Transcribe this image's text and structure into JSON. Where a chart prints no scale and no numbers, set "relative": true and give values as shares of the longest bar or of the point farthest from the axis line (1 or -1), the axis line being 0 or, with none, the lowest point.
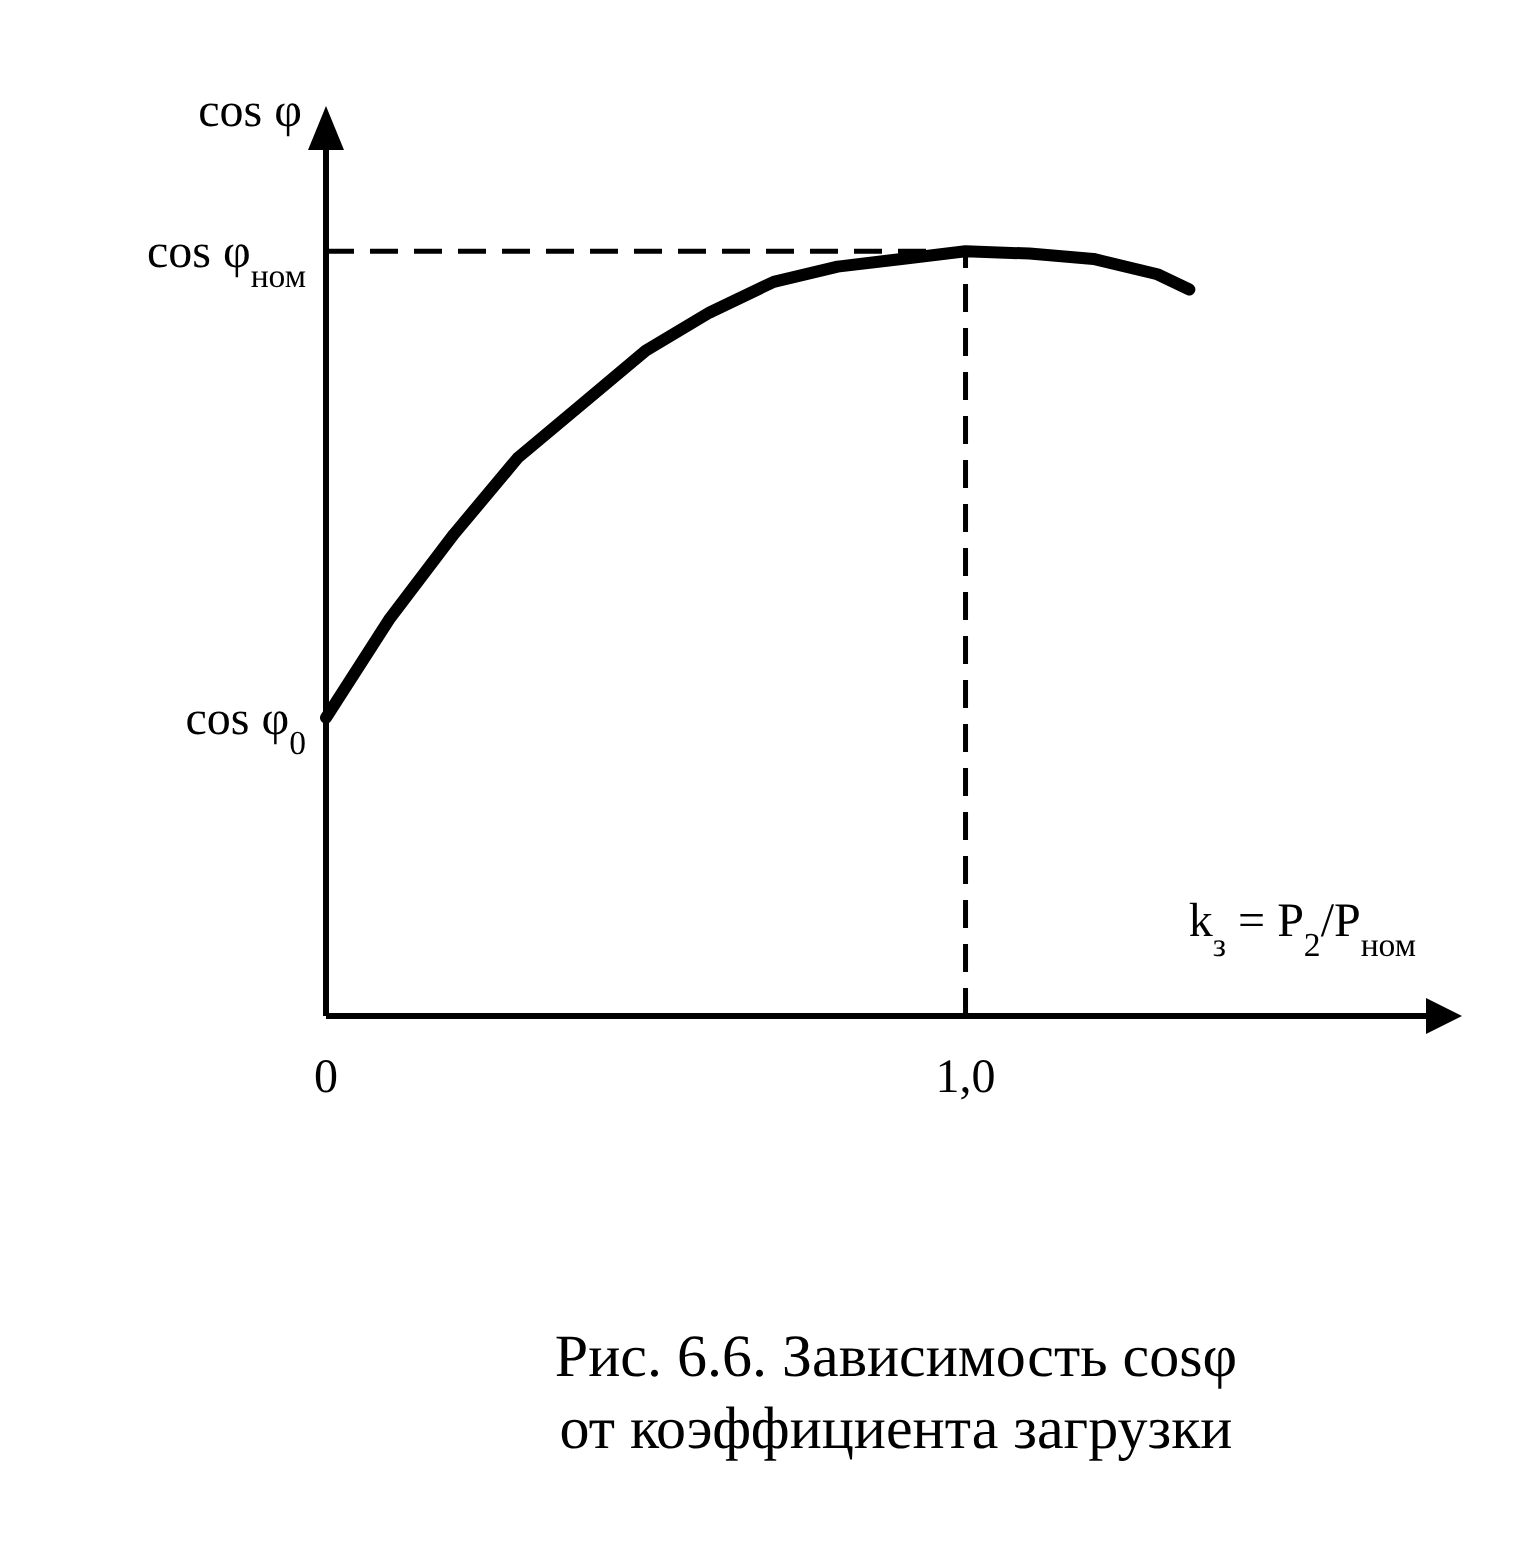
{
  "chart_data": {
    "type": "line",
    "title": "Рис. 6.6. Зависимость cosφ от коэффициента загрузки",
    "xlabel": "k$_{з}$ = P$_{2}$/P$_{ном}$",
    "ylabel": "cos φ",
    "relative": true,
    "x": [
      0,
      0.1,
      0.2,
      0.3,
      0.4,
      0.5,
      0.6,
      0.7,
      0.8,
      0.9,
      1.0,
      1.1,
      1.2,
      1.3,
      1.35
    ],
    "series": [
      {
        "color": "#000000",
        "values": [
          0.39,
          0.52,
          0.63,
          0.73,
          0.8,
          0.87,
          0.92,
          0.96,
          0.98,
          0.99,
          1.0,
          0.997,
          0.99,
          0.97,
          0.95
        ]
      }
    ],
    "xlim": [
      0,
      1.72
    ],
    "xticks": [
      0,
      {
        "value": 1,
        "label": "1,0"
      }
    ],
    "ref_lines": [
      {
        "axis": "y",
        "value": 1,
        "label": "cos φ$_{ном}$",
        "line_style": "dashed"
      },
      {
        "axis": "x",
        "value": 1,
        "line_style": "dashed"
      }
    ],
    "annotations": [
      {
        "text": "cos φ$_{0}$",
        "x": 0,
        "y": 0.39
      }
    ],
    "marker": "none",
    "line_style": "solid"
  }
}
